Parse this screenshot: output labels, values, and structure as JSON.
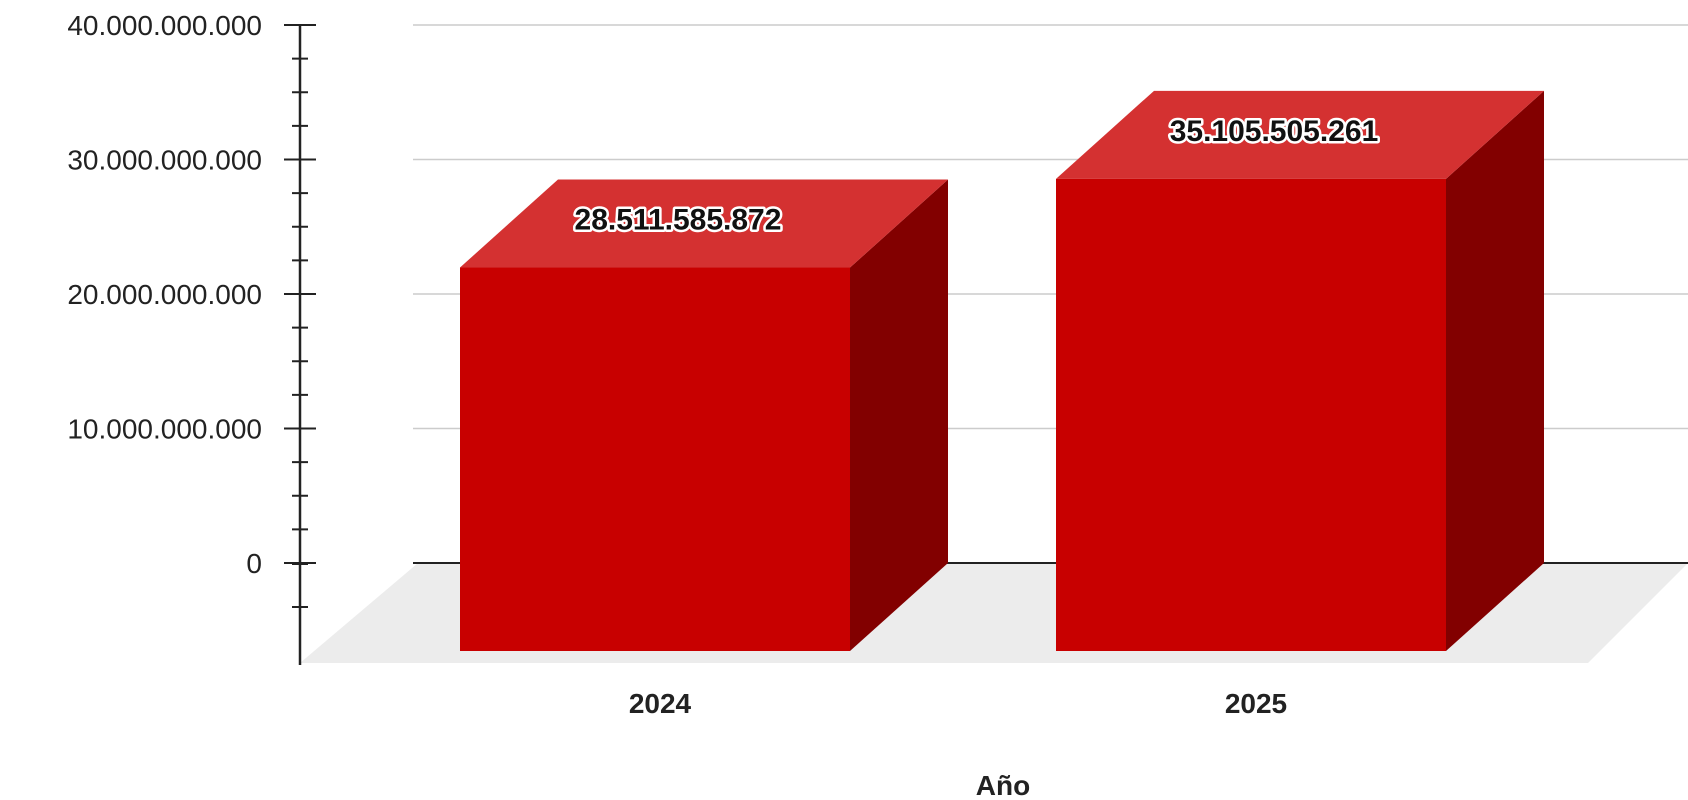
{
  "chart_data": {
    "type": "bar",
    "categories": [
      "2024",
      "2025"
    ],
    "series": [
      {
        "values": [
          28511585872,
          35105505261
        ],
        "data_labels": [
          "28.511.585.872",
          "35.105.505.261"
        ]
      }
    ],
    "title": "",
    "xlabel": "Año",
    "ylabel": "",
    "ylim": [
      0,
      40000000000
    ],
    "yticks": [
      0,
      10000000000,
      20000000000,
      30000000000,
      40000000000
    ],
    "ytick_labels": [
      "0",
      "10.000.000.000",
      "20.000.000.000",
      "30.000.000.000",
      "40.000.000.000"
    ],
    "grid": true,
    "legend": "none",
    "style": "3d",
    "colors": {
      "bar_front": "#c80000",
      "bar_top": "#d43131",
      "bar_side": "#820000",
      "floor": "#ececec",
      "gridline": "#cccccc",
      "axis": "#222222"
    }
  }
}
